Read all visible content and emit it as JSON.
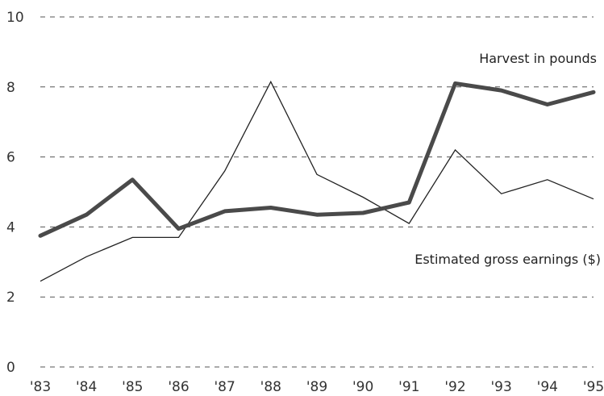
{
  "chart_data": {
    "type": "line",
    "categories": [
      "'83",
      "'84",
      "'85",
      "'86",
      "'87",
      "'88",
      "'89",
      "'90",
      "'91",
      "'92",
      "'93",
      "'94",
      "'95"
    ],
    "ylim": [
      0,
      10
    ],
    "yticks": [
      "0",
      "2",
      "4",
      "6",
      "8",
      "10"
    ],
    "grid": true,
    "series": [
      {
        "name": "Harvest in pounds",
        "style": "thick",
        "color": "#4a4a4a",
        "values": [
          3.75,
          4.35,
          5.35,
          3.95,
          4.45,
          4.55,
          4.35,
          4.4,
          4.7,
          8.1,
          7.9,
          7.5,
          7.85
        ]
      },
      {
        "name": "Estimated gross earnings ($)",
        "style": "thin",
        "color": "#222222",
        "values": [
          2.45,
          3.15,
          3.7,
          3.7,
          5.6,
          8.15,
          5.5,
          4.85,
          4.1,
          6.2,
          4.95,
          5.35,
          4.8
        ]
      }
    ]
  }
}
